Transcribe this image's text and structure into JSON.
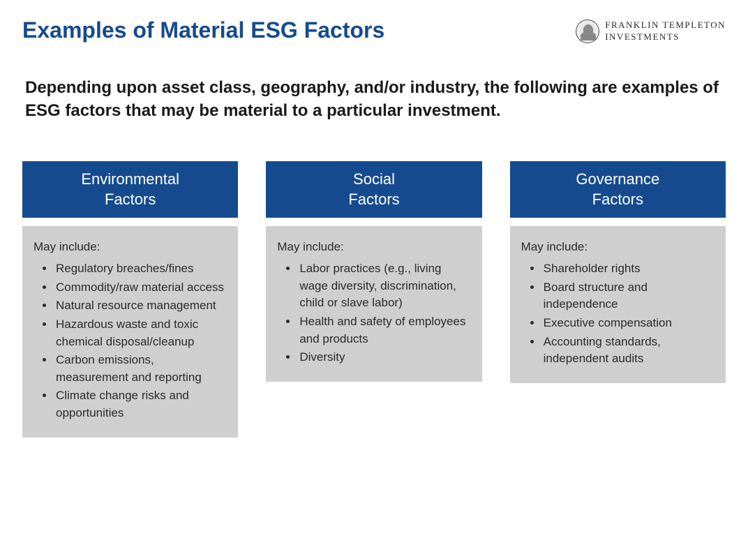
{
  "header": {
    "title": "Examples of Material ESG Factors",
    "brand_line1": "FRANKLIN TEMPLETON",
    "brand_line2": "INVESTMENTS"
  },
  "intro": "Depending upon asset class, geography, and/or industry, the following are examples of ESG factors that may be material to a particular investment.",
  "colors": {
    "title": "#154b8e",
    "column_header_bg": "#154b8e",
    "column_header_text": "#ffffff",
    "column_body_bg": "#cfcfcf",
    "body_text": "#2a2a2a",
    "page_bg": "#ffffff"
  },
  "typography": {
    "title_fontsize": 32,
    "intro_fontsize": 24,
    "column_header_fontsize": 22,
    "body_fontsize": 17,
    "brand_fontsize": 13,
    "font_family": "Arial",
    "brand_font_family": "Georgia"
  },
  "layout": {
    "columns_gap": 40,
    "header_body_gap": 12
  },
  "columns": [
    {
      "header": "Environmental\nFactors",
      "lead": "May include:",
      "items": [
        "Regulatory breaches/fines",
        "Commodity/raw material access",
        "Natural resource management",
        "Hazardous waste and toxic chemical disposal/cleanup",
        "Carbon emissions, measurement and reporting",
        "Climate change risks and opportunities"
      ]
    },
    {
      "header": "Social\nFactors",
      "lead": "May include:",
      "items": [
        "Labor practices (e.g., living wage diversity, discrimination, child or slave labor)",
        "Health and safety of employees and products",
        "Diversity"
      ]
    },
    {
      "header": "Governance\nFactors",
      "lead": "May include:",
      "items": [
        "Shareholder rights",
        "Board structure and independence",
        "Executive compensation",
        "Accounting standards, independent audits"
      ]
    }
  ]
}
